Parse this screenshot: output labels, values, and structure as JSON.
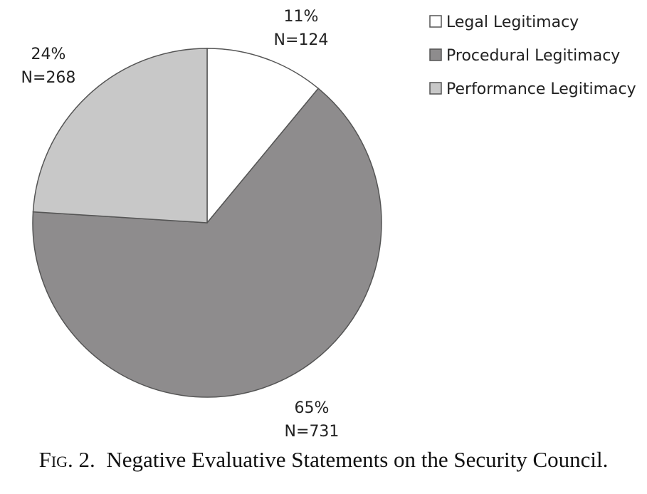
{
  "chart_data": {
    "type": "pie",
    "slices": [
      {
        "name": "Legal Legitimacy",
        "percent": 11,
        "n": 124,
        "pct_label": "11%",
        "n_label": "N=124",
        "color": "#ffffff"
      },
      {
        "name": "Procedural Legitimacy",
        "percent": 65,
        "n": 731,
        "pct_label": "65%",
        "n_label": "N=731",
        "color": "#8e8c8d"
      },
      {
        "name": "Performance Legitimacy",
        "percent": 24,
        "n": 268,
        "pct_label": "24%",
        "n_label": "N=268",
        "color": "#c8c8c8"
      }
    ],
    "start": "12 o'clock",
    "direction": "clockwise",
    "legend_position": "top-right",
    "border_color": "#555555"
  },
  "caption": {
    "fig": "Fig. 2.",
    "text": "Negative Evaluative Statements on the Security Council."
  }
}
